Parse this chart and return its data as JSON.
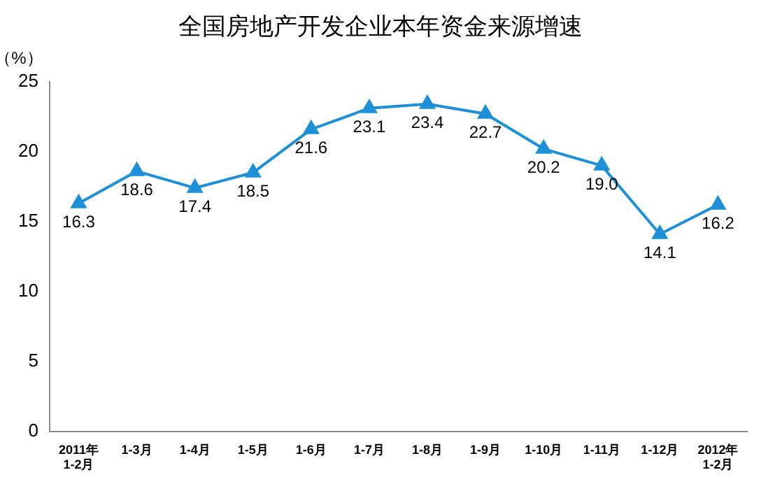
{
  "chart_data": {
    "type": "line",
    "title": "全国房地产开发企业本年资金来源增速",
    "ylabel": "（%）",
    "categories": [
      "2011年\n1-2月",
      "1-3月",
      "1-4月",
      "1-5月",
      "1-6月",
      "1-7月",
      "1-8月",
      "1-9月",
      "1-10月",
      "1-11月",
      "1-12月",
      "2012年\n1-2月"
    ],
    "series": [
      {
        "color": "#1e90d8",
        "values": [
          16.3,
          18.6,
          17.4,
          18.5,
          21.6,
          23.1,
          23.4,
          22.7,
          20.2,
          19.0,
          14.1,
          16.2
        ],
        "value_labels": [
          "16.3",
          "18.6",
          "17.4",
          "18.5",
          "21.6",
          "23.1",
          "23.4",
          "22.7",
          "20.2",
          "19.0",
          "14.1",
          "16.2"
        ]
      }
    ],
    "ylim": [
      0,
      25
    ],
    "yticks": [
      0,
      5,
      10,
      15,
      20,
      25
    ],
    "grid": false,
    "legend": false,
    "marker": "triangle",
    "line_style": "solid"
  }
}
